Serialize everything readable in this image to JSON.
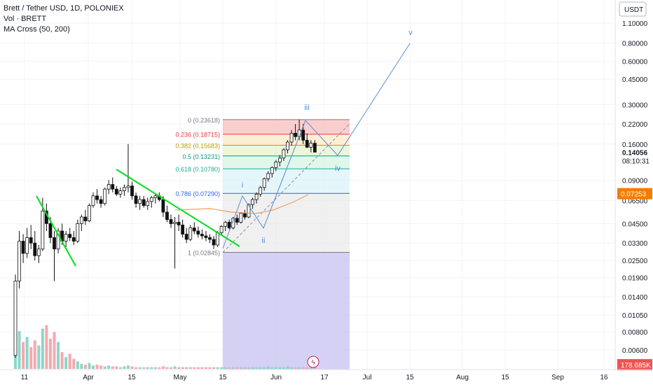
{
  "legend": {
    "title": "Brett / Tether USD, 1D, POLONIEX",
    "vol": "Vol · BRETT",
    "ma": "MA Cross (50, 200)"
  },
  "axis": {
    "currency": "USDT",
    "y_ticks": [
      "1.10000",
      "0.80000",
      "0.60000",
      "0.45000",
      "0.30000",
      "0.22000",
      "0.16000",
      "0.09000",
      "0.06500",
      "0.04500",
      "0.03300",
      "0.02500",
      "0.01900",
      "0.01400",
      "0.01050",
      "0.00800",
      "0.00600"
    ],
    "y_values": [
      1.1,
      0.8,
      0.6,
      0.45,
      0.3,
      0.22,
      0.16,
      0.09,
      0.065,
      0.045,
      0.033,
      0.025,
      0.019,
      0.014,
      0.0105,
      0.008,
      0.006
    ],
    "x_ticks": [
      "11",
      "Apr",
      "15",
      "May",
      "15",
      "Jun",
      "17",
      "Jul",
      "15",
      "Aug",
      "15",
      "Sep",
      "16"
    ],
    "price_label": "0.14056",
    "countdown": "08:10:31",
    "ma_label": "0.07253",
    "volume_label": "178.685K"
  },
  "fib": {
    "levels": [
      {
        "label": "0 (0.23618)",
        "value": 0.23618,
        "color": "#787b86",
        "fill": "#f7a6a6"
      },
      {
        "label": "0.236 (0.18715)",
        "value": 0.18715,
        "color": "#f23645",
        "fill": "#f9e3b0"
      },
      {
        "label": "0.382 (0.15683)",
        "value": 0.15683,
        "color": "#b8a000",
        "fill": "#d9f0b8"
      },
      {
        "label": "0.5 (0.13231)",
        "value": 0.13231,
        "color": "#089981",
        "fill": "#c6f0d8"
      },
      {
        "label": "0.618 (0.10780)",
        "value": 0.1078,
        "color": "#22ab94",
        "fill": "#cfeef5"
      },
      {
        "label": "0.786 (0.07290)",
        "value": 0.0729,
        "color": "#2962ff",
        "fill": "#e3e3e3"
      },
      {
        "label": "1 (0.02845)",
        "value": 0.02845,
        "color": "#787b86",
        "fill": "#c9c6f2"
      }
    ]
  },
  "waves": {
    "i": "i",
    "ii": "ii",
    "iii": "iii",
    "iv": "iv",
    "v": "v"
  },
  "colors": {
    "up": "#089981",
    "down": "#f23645",
    "vol_up": "#8cd6c9",
    "vol_down": "#f7a8ad",
    "trendline": "#00e01b",
    "wave": "#5b8fd6",
    "ma": "#f0a060"
  },
  "chart_data": {
    "type": "candlestick",
    "title": "Brett / Tether USD, 1D, POLONIEX",
    "y_scale": "log",
    "ylim": [
      0.0055,
      1.3
    ],
    "x_period": "Mar 2024 – Sep 2024, daily",
    "last_price": 0.14056,
    "fib_retracement": [
      0.23618,
      0.18715,
      0.15683,
      0.13231,
      0.1078,
      0.0729,
      0.02845
    ],
    "ohlc": [
      [
        0.0055,
        0.02,
        0.0053,
        0.018
      ],
      [
        0.018,
        0.04,
        0.016,
        0.034
      ],
      [
        0.034,
        0.038,
        0.024,
        0.028
      ],
      [
        0.028,
        0.042,
        0.026,
        0.036
      ],
      [
        0.036,
        0.044,
        0.03,
        0.033
      ],
      [
        0.033,
        0.04,
        0.025,
        0.027
      ],
      [
        0.027,
        0.032,
        0.024,
        0.03
      ],
      [
        0.03,
        0.068,
        0.029,
        0.055
      ],
      [
        0.055,
        0.062,
        0.04,
        0.045
      ],
      [
        0.045,
        0.05,
        0.033,
        0.036
      ],
      [
        0.036,
        0.04,
        0.018,
        0.03
      ],
      [
        0.03,
        0.042,
        0.028,
        0.04
      ],
      [
        0.04,
        0.045,
        0.032,
        0.034
      ],
      [
        0.034,
        0.04,
        0.031,
        0.038
      ],
      [
        0.038,
        0.042,
        0.034,
        0.036
      ],
      [
        0.036,
        0.04,
        0.032,
        0.034
      ],
      [
        0.034,
        0.048,
        0.033,
        0.045
      ],
      [
        0.045,
        0.052,
        0.04,
        0.05
      ],
      [
        0.05,
        0.056,
        0.044,
        0.047
      ],
      [
        0.047,
        0.062,
        0.046,
        0.06
      ],
      [
        0.06,
        0.074,
        0.058,
        0.07
      ],
      [
        0.07,
        0.078,
        0.062,
        0.066
      ],
      [
        0.066,
        0.07,
        0.058,
        0.062
      ],
      [
        0.062,
        0.08,
        0.06,
        0.078
      ],
      [
        0.078,
        0.09,
        0.072,
        0.084
      ],
      [
        0.084,
        0.094,
        0.074,
        0.078
      ],
      [
        0.078,
        0.082,
        0.07,
        0.072
      ],
      [
        0.072,
        0.08,
        0.068,
        0.076
      ],
      [
        0.076,
        0.084,
        0.07,
        0.08
      ],
      [
        0.08,
        0.16,
        0.074,
        0.082
      ],
      [
        0.082,
        0.088,
        0.066,
        0.07
      ],
      [
        0.07,
        0.074,
        0.058,
        0.062
      ],
      [
        0.062,
        0.07,
        0.056,
        0.066
      ],
      [
        0.066,
        0.07,
        0.058,
        0.06
      ],
      [
        0.06,
        0.068,
        0.056,
        0.064
      ],
      [
        0.064,
        0.07,
        0.058,
        0.068
      ],
      [
        0.068,
        0.072,
        0.062,
        0.07
      ],
      [
        0.07,
        0.074,
        0.064,
        0.066
      ],
      [
        0.066,
        0.07,
        0.05,
        0.054
      ],
      [
        0.054,
        0.06,
        0.046,
        0.048
      ],
      [
        0.048,
        0.052,
        0.042,
        0.045
      ],
      [
        0.045,
        0.05,
        0.022,
        0.046
      ],
      [
        0.046,
        0.052,
        0.04,
        0.044
      ],
      [
        0.044,
        0.048,
        0.036,
        0.038
      ],
      [
        0.038,
        0.042,
        0.033,
        0.035
      ],
      [
        0.035,
        0.044,
        0.034,
        0.042
      ],
      [
        0.042,
        0.046,
        0.038,
        0.04
      ],
      [
        0.04,
        0.043,
        0.036,
        0.038
      ],
      [
        0.038,
        0.041,
        0.035,
        0.037
      ],
      [
        0.037,
        0.04,
        0.034,
        0.036
      ],
      [
        0.036,
        0.038,
        0.033,
        0.035
      ],
      [
        0.035,
        0.037,
        0.03,
        0.032
      ],
      [
        0.032,
        0.04,
        0.031,
        0.039
      ],
      [
        0.039,
        0.044,
        0.037,
        0.043
      ],
      [
        0.043,
        0.047,
        0.04,
        0.046
      ],
      [
        0.046,
        0.048,
        0.041,
        0.042
      ],
      [
        0.042,
        0.05,
        0.041,
        0.049
      ],
      [
        0.049,
        0.052,
        0.044,
        0.046
      ],
      [
        0.046,
        0.054,
        0.045,
        0.053
      ],
      [
        0.053,
        0.056,
        0.048,
        0.05
      ],
      [
        0.05,
        0.062,
        0.049,
        0.061
      ],
      [
        0.061,
        0.068,
        0.057,
        0.066
      ],
      [
        0.066,
        0.074,
        0.062,
        0.072
      ],
      [
        0.072,
        0.082,
        0.069,
        0.08
      ],
      [
        0.08,
        0.094,
        0.076,
        0.092
      ],
      [
        0.092,
        0.104,
        0.088,
        0.1
      ],
      [
        0.1,
        0.112,
        0.094,
        0.11
      ],
      [
        0.11,
        0.124,
        0.104,
        0.12
      ],
      [
        0.12,
        0.134,
        0.112,
        0.128
      ],
      [
        0.128,
        0.15,
        0.122,
        0.146
      ],
      [
        0.146,
        0.17,
        0.138,
        0.165
      ],
      [
        0.165,
        0.2,
        0.156,
        0.19
      ],
      [
        0.19,
        0.22,
        0.17,
        0.18
      ],
      [
        0.18,
        0.236,
        0.17,
        0.2
      ],
      [
        0.2,
        0.22,
        0.16,
        0.17
      ],
      [
        0.17,
        0.19,
        0.15,
        0.152
      ],
      [
        0.152,
        0.17,
        0.14,
        0.162
      ],
      [
        0.162,
        0.17,
        0.14,
        0.14056
      ]
    ],
    "volume": [
      9.5,
      4.5,
      3.2,
      3.8,
      2.6,
      3.4,
      2.8,
      4.8,
      5.2,
      3.6,
      4.4,
      3.2,
      2.0,
      1.4,
      1.8,
      1.2,
      0.9,
      0.6,
      0.5,
      0.7,
      0.4,
      0.5,
      0.4,
      0.3,
      0.4,
      0.3,
      0.3,
      0.2,
      0.3,
      0.4,
      0.3,
      0.2,
      0.2,
      0.2,
      0.2,
      0.2,
      0.2,
      0.2,
      0.3,
      0.2,
      0.2,
      0.3,
      0.2,
      0.2,
      0.2,
      0.2,
      0.2,
      0.2,
      0.2,
      0.2,
      0.2,
      0.2,
      0.2,
      0.2,
      0.2,
      0.2,
      0.2,
      0.2,
      0.2,
      0.2,
      0.2,
      0.2,
      0.2,
      0.2,
      0.2,
      0.3,
      0.2,
      0.2,
      0.2,
      0.2,
      0.3,
      0.2,
      0.2,
      0.2,
      0.2,
      0.2,
      0.2,
      0.2
    ]
  }
}
